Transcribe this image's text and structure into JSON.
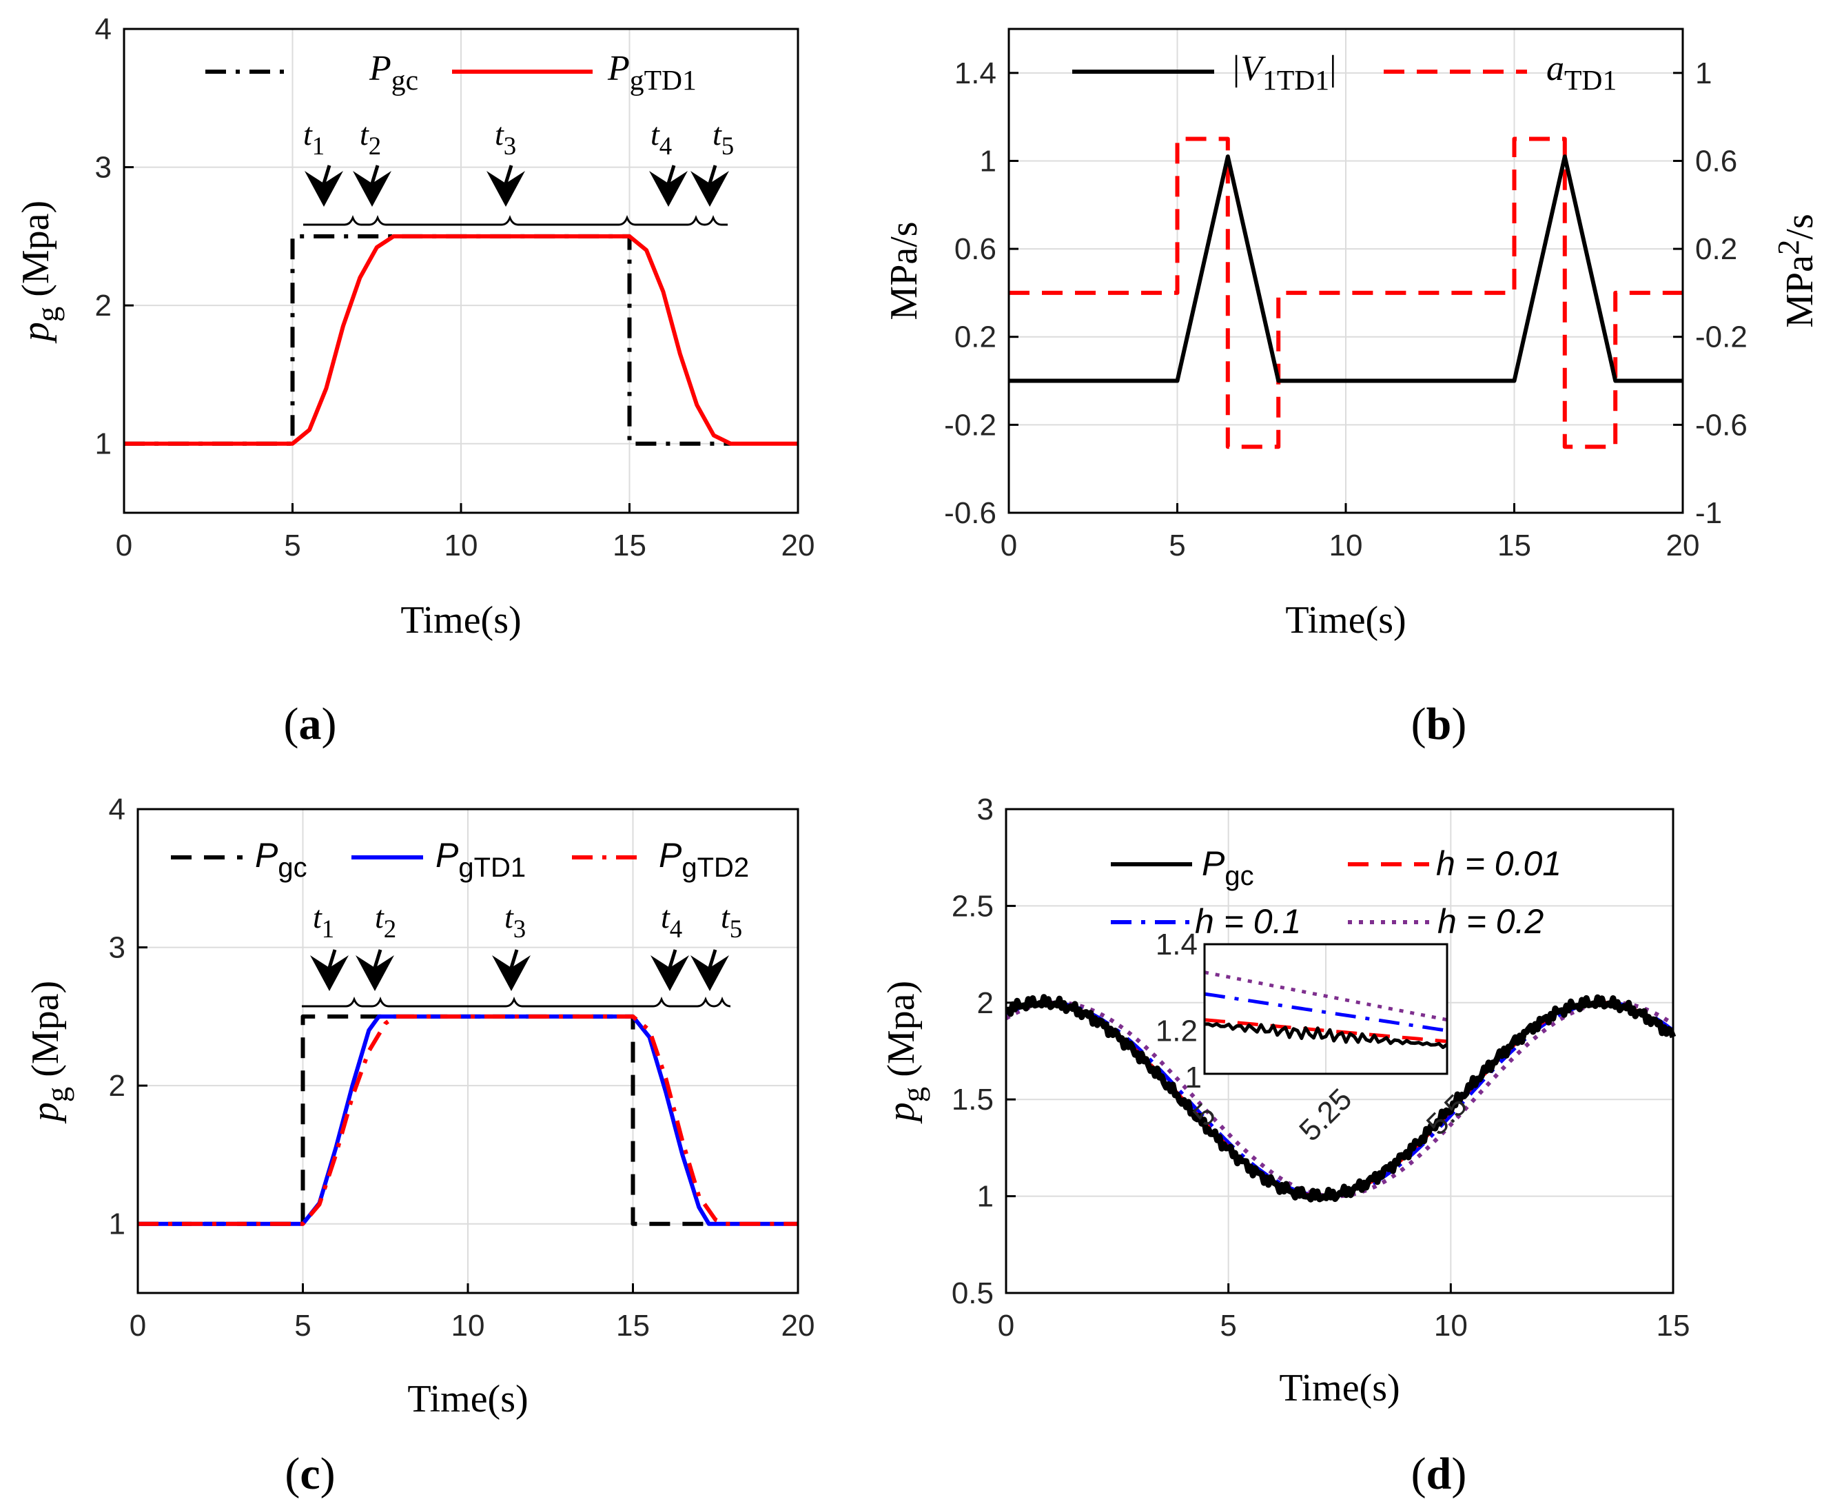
{
  "chart_data": [
    {
      "panel": "a",
      "type": "line",
      "panel_label": "a",
      "xlabel": "Time(s)",
      "ylabel_main": "p",
      "ylabel_sub": "g",
      "ylabel_unit": " (Mpa)",
      "xlim": [
        0,
        20
      ],
      "ylim": [
        0.5,
        4
      ],
      "xticks": [
        "0",
        "5",
        "10",
        "15",
        "20"
      ],
      "yticks": [
        "1",
        "2",
        "3",
        "4"
      ],
      "legend": [
        {
          "main": "P",
          "sub": "gc",
          "color": "#000000",
          "style": "dash-dot"
        },
        {
          "main": "P",
          "sub": "gTD1",
          "color": "#ff0000",
          "style": "solid"
        }
      ],
      "annotations": [
        {
          "main": "t",
          "sub": "1"
        },
        {
          "main": "t",
          "sub": "2"
        },
        {
          "main": "t",
          "sub": "3"
        },
        {
          "main": "t",
          "sub": "4"
        },
        {
          "main": "t",
          "sub": "5"
        }
      ],
      "series": [
        {
          "name": "P_gc",
          "color": "#000000",
          "x": [
            0,
            5,
            5,
            15,
            15,
            18
          ],
          "y": [
            1,
            1,
            2.5,
            2.5,
            1,
            1
          ]
        },
        {
          "name": "P_gTD1",
          "color": "#ff0000",
          "x": [
            0,
            5,
            5.5,
            6,
            6.5,
            7,
            7.5,
            8,
            15,
            15.5,
            16,
            16.5,
            17,
            17.5,
            18,
            20
          ],
          "y": [
            1,
            1,
            1.1,
            1.4,
            1.85,
            2.2,
            2.42,
            2.5,
            2.5,
            2.4,
            2.1,
            1.65,
            1.28,
            1.06,
            1,
            1
          ]
        }
      ]
    },
    {
      "panel": "b",
      "type": "line",
      "panel_label": "b",
      "xlabel": "Time(s)",
      "ylabel_left": "MPa/s",
      "ylabel_right_main": "MPa",
      "ylabel_right_sup": "2",
      "ylabel_right_tail": "/s",
      "xlim": [
        0,
        20
      ],
      "ylim_left": [
        -0.6,
        1.6
      ],
      "ylim_right": [
        -1,
        1.2
      ],
      "xticks": [
        "0",
        "5",
        "10",
        "15",
        "20"
      ],
      "yticks_left": [
        "-0.6",
        "-0.2",
        "0.2",
        "0.6",
        "1",
        "1.4"
      ],
      "yticks_right": [
        "-1",
        "-0.6",
        "-0.2",
        "0.2",
        "0.6",
        "1"
      ],
      "legend": [
        {
          "label": "|V",
          "sub": "1TD1",
          "tail": "|",
          "color": "#000000",
          "style": "solid"
        },
        {
          "label": "a",
          "sub": "TD1",
          "tail": "",
          "color": "#ff0000",
          "style": "dashed"
        }
      ],
      "series": [
        {
          "name": "|V1TD1|",
          "axis": "left",
          "color": "#000000",
          "x": [
            0,
            5,
            6.5,
            8,
            15,
            16.5,
            18,
            20
          ],
          "y": [
            0,
            0,
            1.02,
            0,
            0,
            1.02,
            0,
            0
          ]
        },
        {
          "name": "aTD1",
          "axis": "right",
          "color": "#ff0000",
          "x": [
            0,
            5,
            5,
            6.5,
            6.5,
            8,
            8,
            15,
            15,
            16.5,
            16.5,
            18,
            18,
            20
          ],
          "y": [
            0,
            0,
            0.7,
            0.7,
            -0.7,
            -0.7,
            0,
            0,
            0.7,
            0.7,
            -0.7,
            -0.7,
            0,
            0
          ]
        }
      ]
    },
    {
      "panel": "c",
      "type": "line",
      "panel_label": "c",
      "xlabel": "Time(s)",
      "ylabel_main": "p",
      "ylabel_sub": "g",
      "ylabel_unit": " (Mpa)",
      "xlim": [
        0,
        20
      ],
      "ylim": [
        0.5,
        4
      ],
      "xticks": [
        "0",
        "5",
        "10",
        "15",
        "20"
      ],
      "yticks": [
        "1",
        "2",
        "3",
        "4"
      ],
      "legend": [
        {
          "main": "P",
          "sub": "gc",
          "color": "#000000",
          "style": "dashed"
        },
        {
          "main": "P",
          "sub": "gTD1",
          "color": "#0000ff",
          "style": "solid"
        },
        {
          "main": "P",
          "sub": "gTD2",
          "color": "#ff0000",
          "style": "dash-dot"
        }
      ],
      "annotations": [
        {
          "main": "t",
          "sub": "1"
        },
        {
          "main": "t",
          "sub": "2"
        },
        {
          "main": "t",
          "sub": "3"
        },
        {
          "main": "t",
          "sub": "4"
        },
        {
          "main": "t",
          "sub": "5"
        }
      ],
      "series": [
        {
          "name": "P_gc",
          "color": "#000000",
          "x": [
            0,
            5,
            5,
            15,
            15,
            17.5
          ],
          "y": [
            1,
            1,
            2.5,
            2.5,
            1,
            1
          ]
        },
        {
          "name": "P_gTD1",
          "color": "#0000ff",
          "x": [
            0,
            5,
            5.5,
            6,
            6.5,
            7,
            7.3,
            15,
            15.5,
            16,
            16.5,
            17,
            17.3,
            20
          ],
          "y": [
            1,
            1,
            1.15,
            1.55,
            2.0,
            2.4,
            2.5,
            2.5,
            2.35,
            1.95,
            1.5,
            1.12,
            1,
            1
          ]
        },
        {
          "name": "P_gTD2",
          "color": "#ff0000",
          "x": [
            0,
            5,
            5.5,
            6,
            6.5,
            7,
            7.5,
            7.8,
            15,
            15.5,
            16,
            16.5,
            17,
            17.5,
            17.8,
            20
          ],
          "y": [
            1,
            1,
            1.14,
            1.5,
            1.92,
            2.25,
            2.45,
            2.5,
            2.5,
            2.4,
            2.05,
            1.6,
            1.2,
            1.03,
            1,
            1
          ]
        }
      ]
    },
    {
      "panel": "d",
      "type": "line",
      "panel_label": "d",
      "xlabel": "Time(s)",
      "ylabel_main": "p",
      "ylabel_sub": "g",
      "ylabel_unit": " (Mpa)",
      "xlim": [
        0,
        15
      ],
      "ylim": [
        0.5,
        3
      ],
      "xticks": [
        "0",
        "5",
        "10",
        "15"
      ],
      "yticks": [
        "0.5",
        "1",
        "1.5",
        "2",
        "2.5",
        "3"
      ],
      "legend": [
        {
          "label": "P",
          "sub": "gc",
          "color": "#000000",
          "style": "solid"
        },
        {
          "label": "h = 0.01",
          "sub": "",
          "color": "#ff0000",
          "style": "dashed"
        },
        {
          "label": "h = 0.1",
          "sub": "",
          "color": "#0000ff",
          "style": "dash-dot"
        },
        {
          "label": "h = 0.2",
          "sub": "",
          "color": "#7e2f8e",
          "style": "dotted"
        }
      ],
      "inset": {
        "xlim": [
          5.0,
          5.5
        ],
        "ylim": [
          1.1,
          1.4
        ],
        "xticks": [
          "5",
          "5.25",
          "5.5"
        ],
        "yticks": [
          "1",
          "1.2",
          "1.4"
        ]
      },
      "series": [
        {
          "name": "P_gc",
          "color": "#000000",
          "model": {
            "amp": 0.5,
            "offset": 1.5,
            "period": 12.5,
            "lag": 0
          }
        },
        {
          "name": "h = 0.01",
          "color": "#ff0000",
          "model": {
            "amp": 0.5,
            "offset": 1.5,
            "period": 12.5,
            "lag": 0.05
          }
        },
        {
          "name": "h = 0.1",
          "color": "#0000ff",
          "model": {
            "amp": 0.5,
            "offset": 1.5,
            "period": 12.5,
            "lag": 0.15
          }
        },
        {
          "name": "h = 0.2",
          "color": "#7e2f8e",
          "model": {
            "amp": 0.5,
            "offset": 1.5,
            "period": 12.5,
            "lag": 0.35
          }
        }
      ]
    }
  ]
}
